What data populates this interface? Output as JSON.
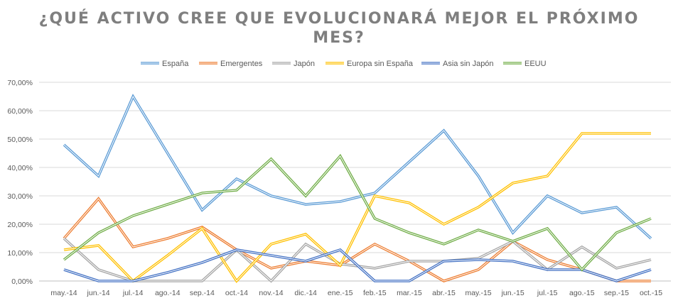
{
  "chart_data": {
    "type": "line",
    "title_line1": "¿QUÉ ACTIVO CREE QUE EVOLUCIONARÁ MEJOR EL PRÓXIMO",
    "title_line2": "MES?",
    "categories": [
      "may.-14",
      "jun.-14",
      "jul.-14",
      "ago.-14",
      "sep.-14",
      "oct.-14",
      "nov.-14",
      "dic.-14",
      "ene.-15",
      "feb.-15",
      "mar.-15",
      "abr.-15",
      "may.-15",
      "jun.-15",
      "jul.-15",
      "ago.-15",
      "sep.-15",
      "oct.-15"
    ],
    "ylim": [
      0,
      0.7
    ],
    "yticks": [
      {
        "v": 0.0,
        "label": "0,00%"
      },
      {
        "v": 0.1,
        "label": "10,00%"
      },
      {
        "v": 0.2,
        "label": "20,00%"
      },
      {
        "v": 0.3,
        "label": "30,00%"
      },
      {
        "v": 0.4,
        "label": "40,00%"
      },
      {
        "v": 0.5,
        "label": "50,00%"
      },
      {
        "v": 0.6,
        "label": "60,00%"
      },
      {
        "v": 0.7,
        "label": "70,00%"
      }
    ],
    "grid": true,
    "legend_position": "top",
    "series": [
      {
        "name": "España",
        "color": "#5B9BD5",
        "values": [
          0.48,
          0.37,
          0.65,
          0.45,
          0.25,
          0.36,
          0.3,
          0.27,
          0.28,
          0.31,
          0.42,
          0.53,
          0.37,
          0.17,
          0.3,
          0.24,
          0.26,
          0.15
        ]
      },
      {
        "name": "Emergentes",
        "color": "#ED7D31",
        "values": [
          0.15,
          0.29,
          0.12,
          0.15,
          0.19,
          0.11,
          0.045,
          0.07,
          0.055,
          0.13,
          0.07,
          0.0,
          0.04,
          0.14,
          0.075,
          0.04,
          0.0,
          0.0
        ]
      },
      {
        "name": "Japón",
        "color": "#A5A5A5",
        "values": [
          0.15,
          0.04,
          0.0,
          0.0,
          0.0,
          0.11,
          0.0,
          0.13,
          0.06,
          0.045,
          0.07,
          0.07,
          0.08,
          0.14,
          0.04,
          0.12,
          0.045,
          0.075
        ]
      },
      {
        "name": "Europa sin España",
        "color": "#FFC000",
        "values": [
          0.11,
          0.125,
          0.0,
          0.09,
          0.185,
          0.0,
          0.13,
          0.165,
          0.055,
          0.3,
          0.275,
          0.2,
          0.26,
          0.345,
          0.37,
          0.52,
          0.52,
          0.52
        ]
      },
      {
        "name": "Asia sin Japón",
        "color": "#4472C4",
        "values": [
          0.04,
          0.0,
          0.0,
          0.03,
          0.065,
          0.11,
          0.09,
          0.07,
          0.11,
          0.0,
          0.0,
          0.07,
          0.075,
          0.07,
          0.04,
          0.04,
          0.0,
          0.04
        ]
      },
      {
        "name": "EEUU",
        "color": "#70AD47",
        "values": [
          0.075,
          0.17,
          0.23,
          0.27,
          0.31,
          0.32,
          0.43,
          0.3,
          0.44,
          0.22,
          0.17,
          0.13,
          0.18,
          0.14,
          0.185,
          0.04,
          0.17,
          0.22
        ]
      }
    ]
  }
}
